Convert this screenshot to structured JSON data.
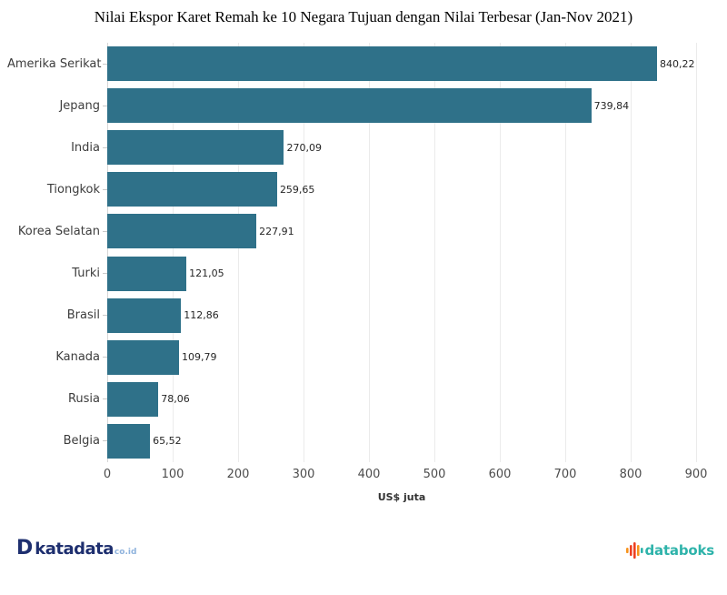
{
  "title": "Nilai Ekspor Karet Remah ke 10 Negara Tujuan dengan Nilai Terbesar (Jan-Nov 2021)",
  "chart_data": {
    "type": "bar",
    "orientation": "horizontal",
    "title": "Nilai Ekspor Karet Remah ke 10 Negara Tujuan dengan Nilai Terbesar (Jan-Nov 2021)",
    "categories": [
      "Amerika Serikat",
      "Jepang",
      "India",
      "Tiongkok",
      "Korea Selatan",
      "Turki",
      "Brasil",
      "Kanada",
      "Rusia",
      "Belgia"
    ],
    "values": [
      840.22,
      739.84,
      270.09,
      259.65,
      227.91,
      121.05,
      112.86,
      109.79,
      78.06,
      65.52
    ],
    "value_labels": [
      "840,22",
      "739,84",
      "270,09",
      "259,65",
      "227,91",
      "121,05",
      "112,86",
      "109,79",
      "78,06",
      "65,52"
    ],
    "xlabel": "US$ juta",
    "ylabel": "",
    "xticks": [
      0,
      100,
      200,
      300,
      400,
      500,
      600,
      700,
      800,
      900
    ],
    "xlim": [
      0,
      900
    ],
    "grid": "vertical",
    "legend": "none",
    "bar_color": "#2f7189"
  },
  "footer": {
    "katadata": {
      "icon": "D",
      "name": "katadata",
      "tld": "co.id"
    },
    "databoks": {
      "name": "databoks"
    }
  },
  "colors": {
    "bar": "#2f7189",
    "gridline": "#ebebeb",
    "axis_line": "#d6d6d6",
    "katadata_navy": "#1e2f6f",
    "databoks_teal": "#2eb3aa",
    "databoks_orange": "#f7941d",
    "databoks_red": "#ee4123"
  }
}
